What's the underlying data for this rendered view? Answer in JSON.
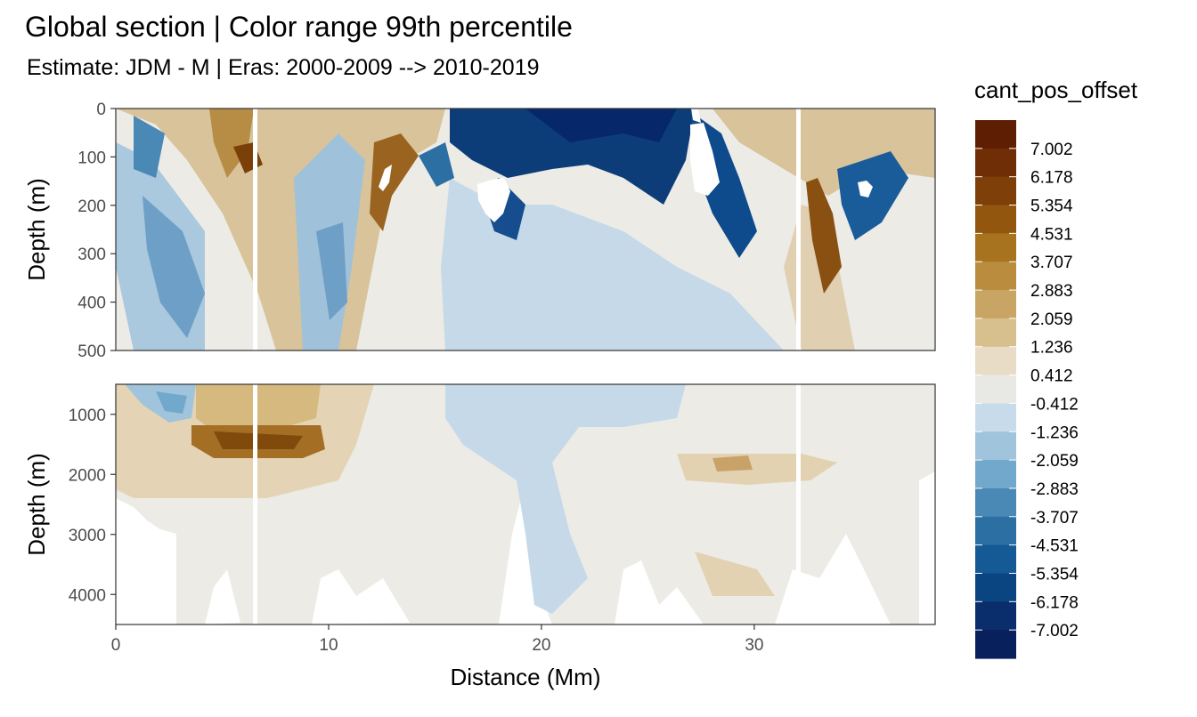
{
  "chart_data": {
    "type": "heatmap",
    "title": "Global section | Color range 99th percentile",
    "subtitle": "Estimate: JDM - M | Eras: 2000-2009 --> 2010-2019",
    "xlabel": "Distance (Mm)",
    "xlim": [
      0,
      38.5
    ],
    "x_ticks": [
      "0",
      "10",
      "20",
      "30"
    ],
    "panels": [
      {
        "ylabel": "Depth (m)",
        "ylim": [
          0,
          500
        ],
        "y_reversed": true,
        "y_ticks": [
          "0",
          "100",
          "200",
          "300",
          "400",
          "500"
        ]
      },
      {
        "ylabel": "Depth (m)",
        "ylim": [
          500,
          4500
        ],
        "y_reversed": true,
        "y_ticks": [
          "1000",
          "2000",
          "3000",
          "4000"
        ]
      }
    ],
    "legend": {
      "title": "cant_pos_offset",
      "placement": "right",
      "labels": [
        "7.002",
        "6.178",
        "5.354",
        "4.531",
        "3.707",
        "2.883",
        "2.059",
        "1.236",
        "0.412",
        "-0.412",
        "-1.236",
        "-2.059",
        "-2.883",
        "-3.707",
        "-4.531",
        "-5.354",
        "-6.178",
        "-7.002"
      ],
      "colors": [
        "#5e1e03",
        "#6f2e05",
        "#7f3f08",
        "#92560f",
        "#a8731f",
        "#ba8c3e",
        "#c8a564",
        "#d8bf8e",
        "#e9dcc7",
        "#e8e9e5",
        "#c7dbea",
        "#9fc4dc",
        "#72a8cb",
        "#4a88b6",
        "#2b6fa3",
        "#155a94",
        "#0a4581",
        "#0a2e6b",
        "#08205c"
      ]
    }
  }
}
